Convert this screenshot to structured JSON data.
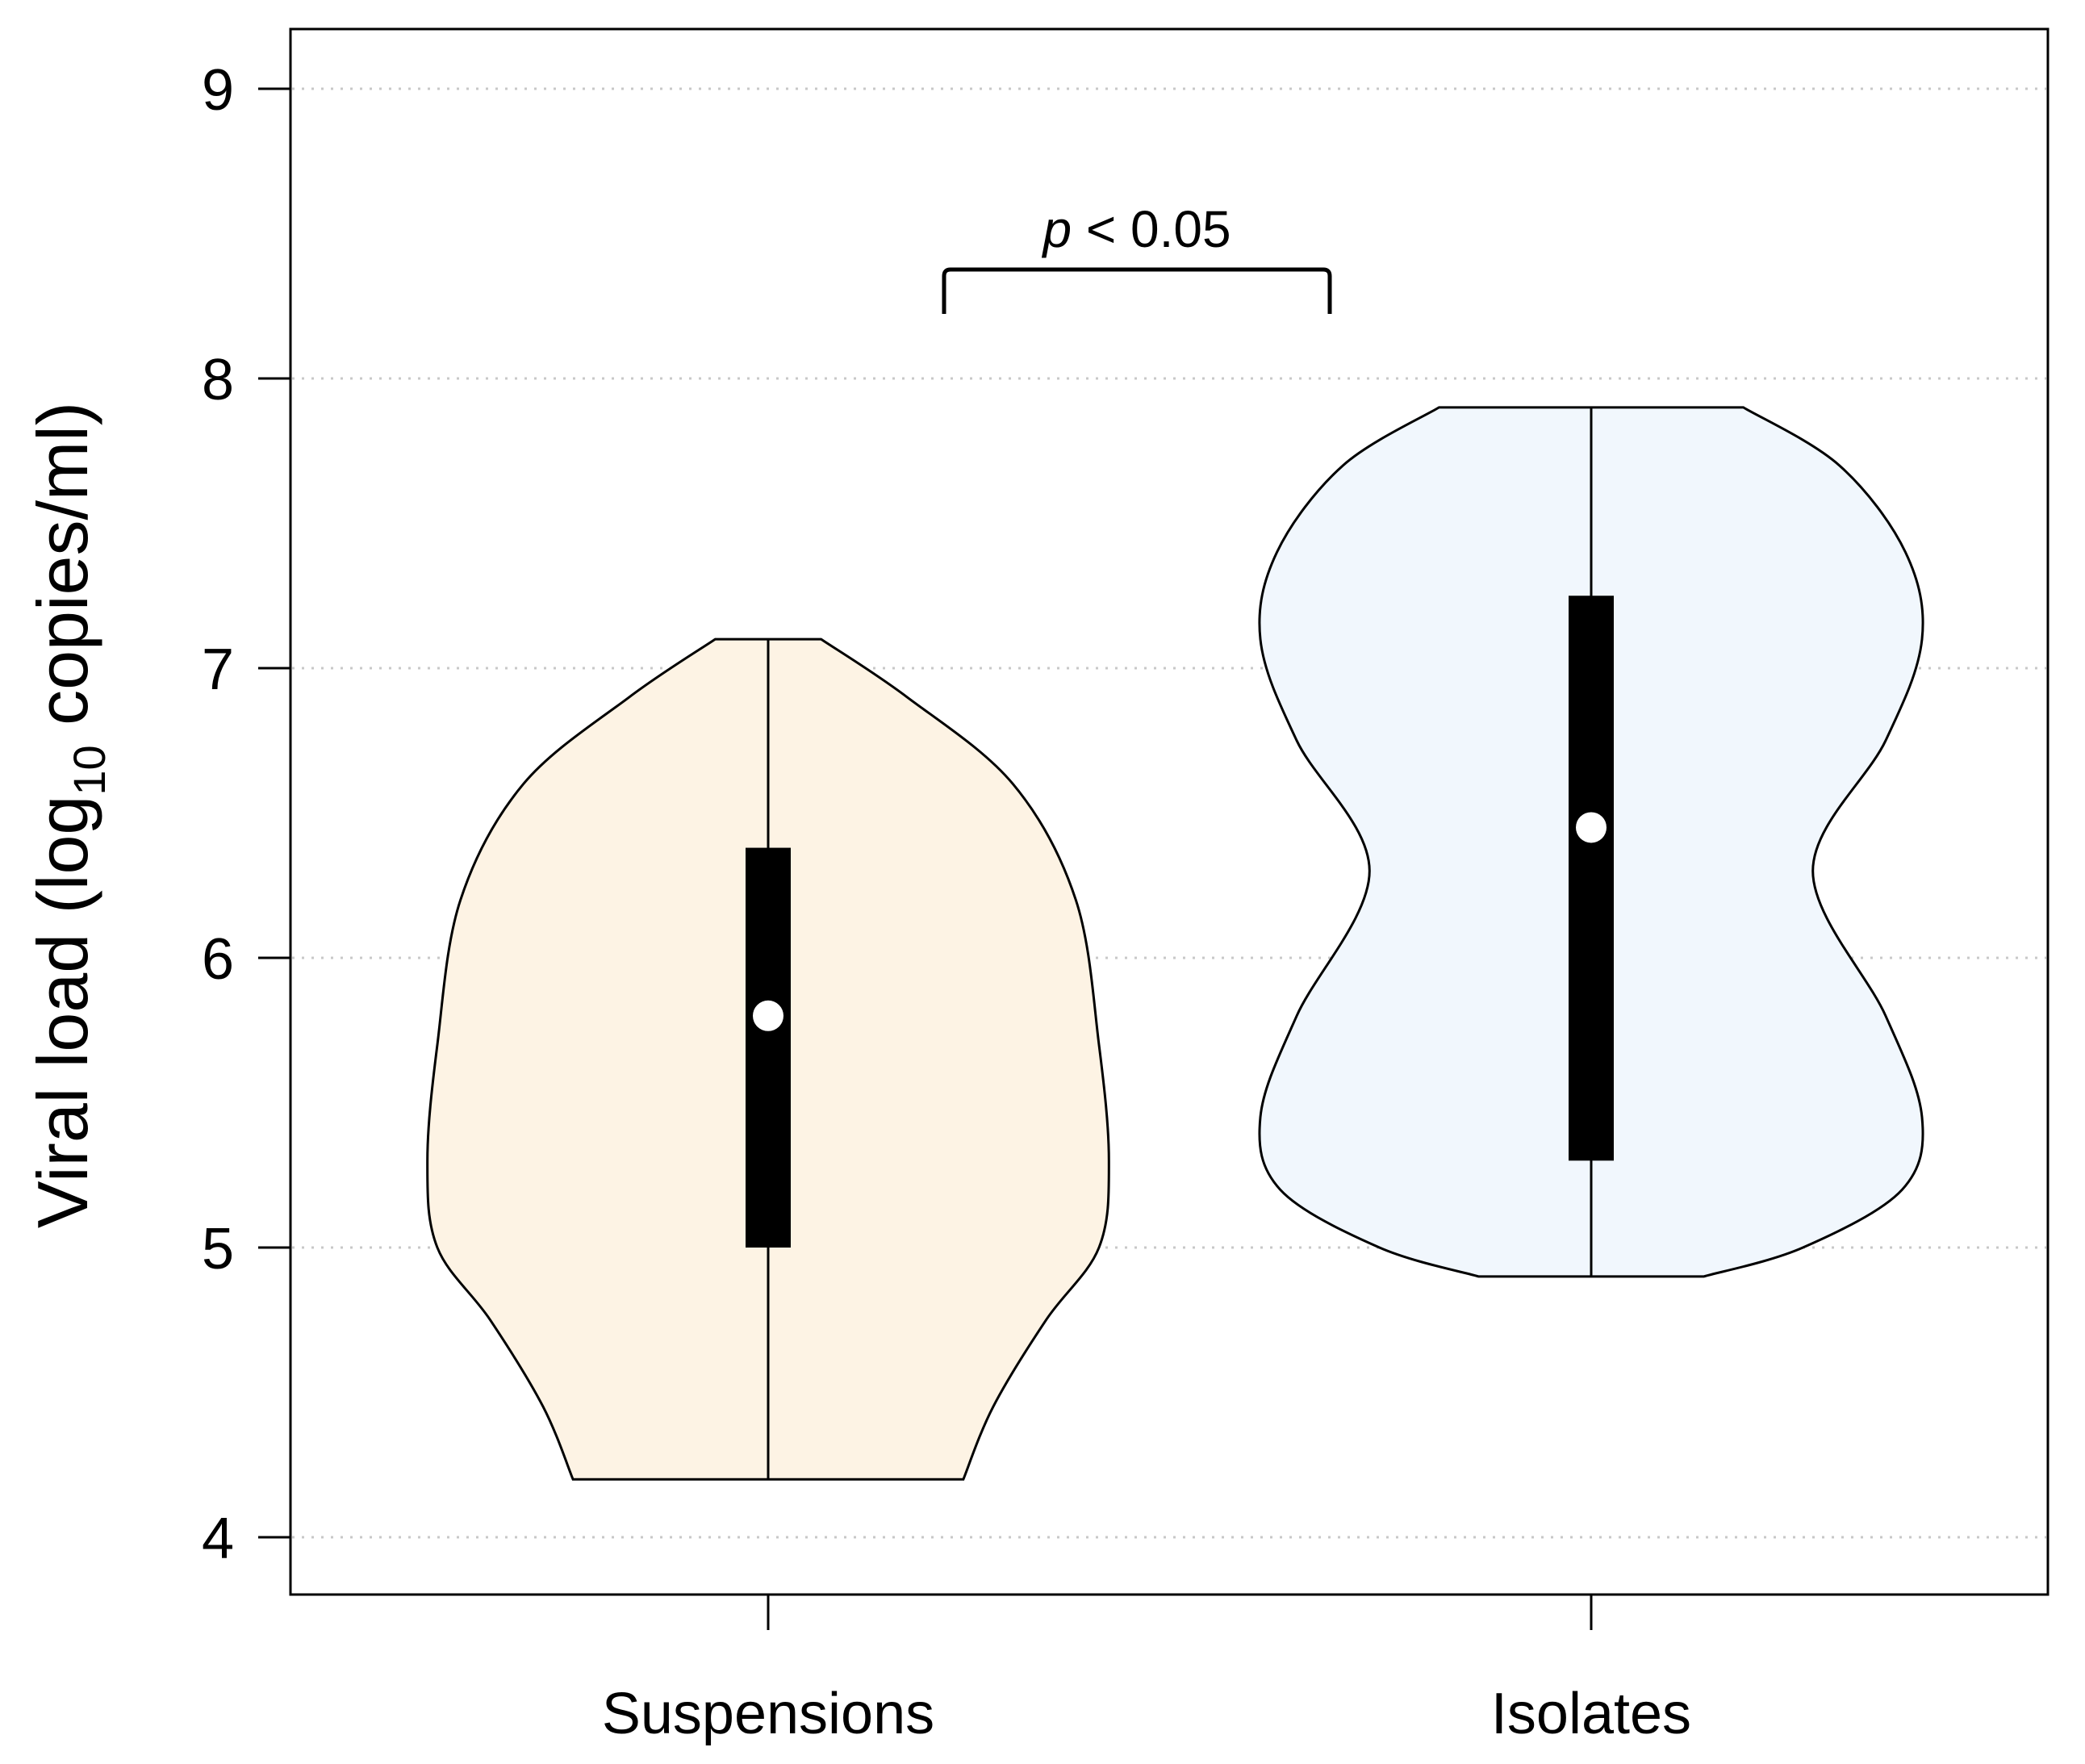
{
  "chart_data": {
    "type": "violin",
    "ylabel_main": "Viral load (log",
    "ylabel_sub": "10",
    "ylabel_tail": " copies/ml)",
    "ylim": [
      3.8,
      9.2
    ],
    "yticks": [
      4,
      5,
      6,
      7,
      8,
      9
    ],
    "ytick_labels": [
      "4",
      "5",
      "6",
      "7",
      "8",
      "9"
    ],
    "grid": "horizontal dotted",
    "categories": [
      "Suspensions",
      "Isolates"
    ],
    "groups": [
      {
        "name": "Suspensions",
        "fill": "#fdf3e4",
        "min": 4.2,
        "max": 7.1,
        "q1": 5.0,
        "q3": 6.38,
        "median": 5.8,
        "density": [
          [
            4.2,
            0.41
          ],
          [
            4.45,
            0.32
          ],
          [
            4.75,
            0.16
          ],
          [
            5.0,
            0.0
          ],
          [
            5.3,
            -0.03
          ],
          [
            5.7,
            0.0
          ],
          [
            6.2,
            0.07
          ],
          [
            6.6,
            0.26
          ],
          [
            6.9,
            0.58
          ],
          [
            7.1,
            0.84
          ]
        ]
      },
      {
        "name": "Isolates",
        "fill": "#f1f7fd",
        "min": 4.9,
        "max": 7.9,
        "q1": 5.3,
        "q3": 7.25,
        "median": 6.45,
        "density": [
          [
            4.9,
            0.66
          ],
          [
            5.0,
            0.36
          ],
          [
            5.2,
            0.06
          ],
          [
            5.45,
            0.0
          ],
          [
            5.8,
            0.11
          ],
          [
            6.3,
            0.33
          ],
          [
            6.75,
            0.11
          ],
          [
            7.1,
            0.0
          ],
          [
            7.4,
            0.05
          ],
          [
            7.7,
            0.25
          ],
          [
            7.9,
            0.54
          ]
        ]
      }
    ],
    "annotation": {
      "p_symbol": "p",
      "text": " < 0.05",
      "between": [
        "Suspensions",
        "Isolates"
      ]
    }
  }
}
